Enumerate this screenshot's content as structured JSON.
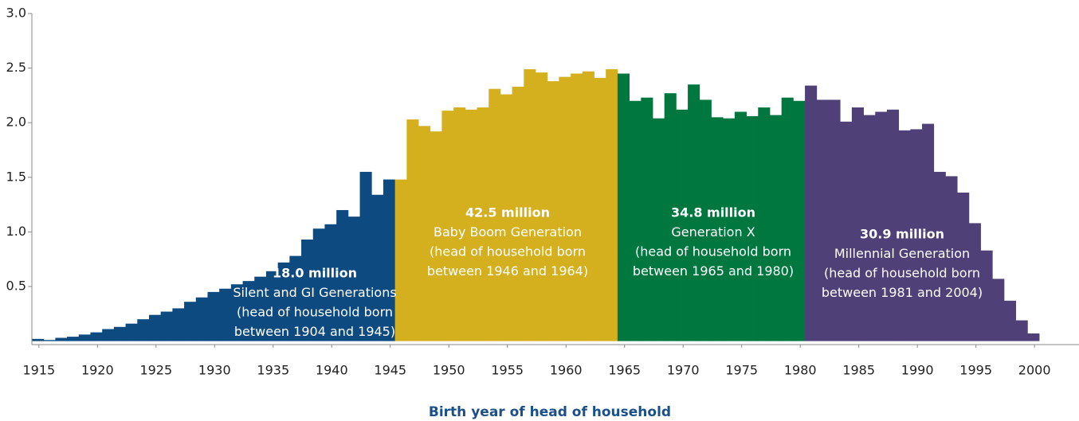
{
  "chart_data": {
    "type": "bar",
    "xlabel": "Birth year of head of household",
    "xlim": [
      1914.4,
      2003.8
    ],
    "xticks": [
      1915,
      1920,
      1925,
      1930,
      1935,
      1940,
      1945,
      1950,
      1955,
      1960,
      1965,
      1970,
      1975,
      1980,
      1985,
      1990,
      1995,
      2000
    ],
    "ylim": [
      0,
      3.0
    ],
    "yticks": [
      0.5,
      {
        "value": 1.0,
        "label": "1.0"
      },
      1.5,
      {
        "value": 2.0,
        "label": "2.0"
      },
      2.5,
      {
        "value": 3.0,
        "label": "3.0"
      }
    ],
    "series": [
      {
        "color": "#0d4a80",
        "x": [
          1915,
          1916,
          1917,
          1918,
          1919,
          1920,
          1921,
          1922,
          1923,
          1924,
          1925,
          1926,
          1927,
          1928,
          1929,
          1930,
          1931,
          1932,
          1933,
          1934,
          1935,
          1936,
          1937,
          1938,
          1939,
          1940,
          1941,
          1942,
          1943,
          1944,
          1945
        ],
        "values": [
          0.02,
          0.01,
          0.03,
          0.04,
          0.06,
          0.08,
          0.11,
          0.13,
          0.16,
          0.2,
          0.24,
          0.27,
          0.3,
          0.36,
          0.4,
          0.45,
          0.48,
          0.52,
          0.55,
          0.59,
          0.64,
          0.72,
          0.78,
          0.93,
          1.03,
          1.07,
          1.2,
          1.14,
          1.55,
          1.34,
          1.48
        ]
      },
      {
        "color": "#d4af1e",
        "x": [
          1946,
          1947,
          1948,
          1949,
          1950,
          1951,
          1952,
          1953,
          1954,
          1955,
          1956,
          1957,
          1958,
          1959,
          1960,
          1961,
          1962,
          1963,
          1964
        ],
        "values": [
          1.48,
          2.03,
          1.97,
          1.92,
          2.11,
          2.14,
          2.12,
          2.14,
          2.31,
          2.26,
          2.33,
          2.49,
          2.46,
          2.38,
          2.42,
          2.45,
          2.47,
          2.41,
          2.49
        ]
      },
      {
        "color": "#00773f",
        "x": [
          1965,
          1966,
          1967,
          1968,
          1969,
          1970,
          1971,
          1972,
          1973,
          1974,
          1975,
          1976,
          1977,
          1978,
          1979,
          1980
        ],
        "values": [
          2.45,
          2.2,
          2.23,
          2.04,
          2.27,
          2.12,
          2.35,
          2.21,
          2.05,
          2.04,
          2.1,
          2.06,
          2.14,
          2.07,
          2.23,
          2.2
        ]
      },
      {
        "color": "#4f4078",
        "x": [
          1981,
          1982,
          1983,
          1984,
          1985,
          1986,
          1987,
          1988,
          1989,
          1990,
          1991,
          1992,
          1993,
          1994,
          1995,
          1996,
          1997,
          1998,
          1999,
          2000
        ],
        "values": [
          2.34,
          2.21,
          2.21,
          2.01,
          2.14,
          2.07,
          2.1,
          2.12,
          1.93,
          1.94,
          1.99,
          1.55,
          1.51,
          1.36,
          1.08,
          0.83,
          0.57,
          0.37,
          0.19,
          0.07
        ]
      }
    ],
    "annotations": [
      {
        "title": "18.0 million",
        "lines": [
          "Silent and GI Generations",
          "(head of household born",
          "between 1904 and 1945)"
        ]
      },
      {
        "title": "42.5 million",
        "lines": [
          "Baby Boom Generation",
          "(head of household born",
          "between 1946 and 1964)"
        ]
      },
      {
        "title": "34.8 million",
        "lines": [
          "Generation X",
          "(head of household born",
          "between 1965 and 1980)"
        ]
      },
      {
        "title": "30.9 million",
        "lines": [
          "Millennial Generation",
          "(head of household born",
          "between 1981 and 2004)"
        ]
      }
    ]
  }
}
